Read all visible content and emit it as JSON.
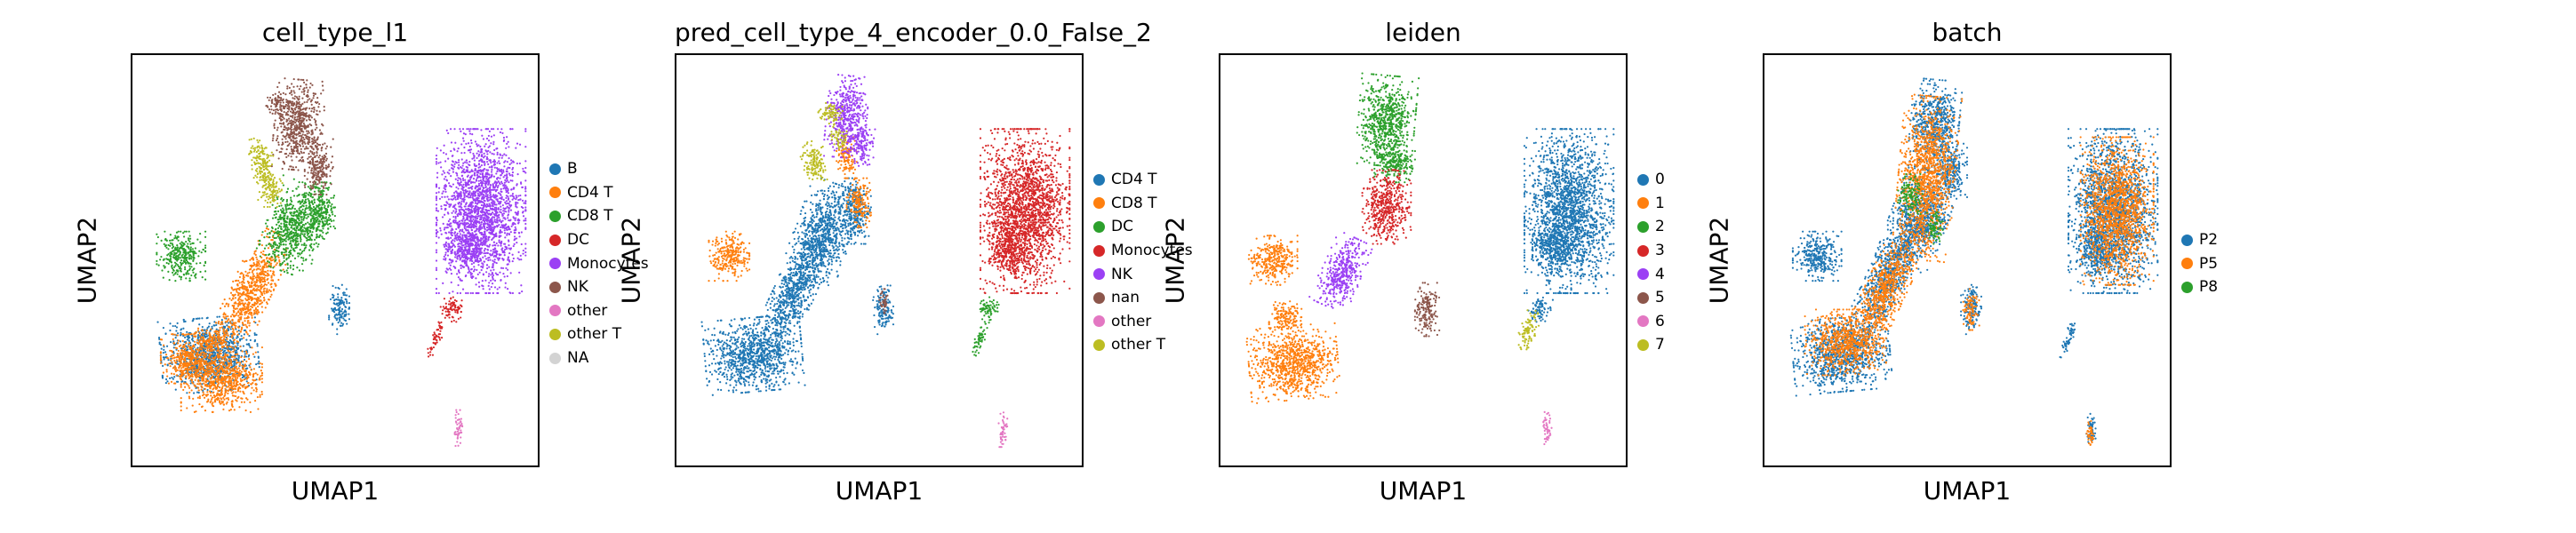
{
  "panels": [
    {
      "title": "cell_type_l1",
      "xlabel": "UMAP1",
      "ylabel": "UMAP2",
      "legend": [
        {
          "label": "B",
          "color": "#1f77b4"
        },
        {
          "label": "CD4 T",
          "color": "#ff7f0e"
        },
        {
          "label": "CD8 T",
          "color": "#2ca02c"
        },
        {
          "label": "DC",
          "color": "#d62728"
        },
        {
          "label": "Monocytes",
          "color": "#9b40f4"
        },
        {
          "label": "NK",
          "color": "#8c564b"
        },
        {
          "label": "other",
          "color": "#e377c2"
        },
        {
          "label": "other T",
          "color": "#bcbd22"
        },
        {
          "label": "NA",
          "color": "#d3d3d3"
        }
      ]
    },
    {
      "title": "pred_cell_type_4_encoder_0.0_False_2",
      "xlabel": "UMAP1",
      "ylabel": "UMAP2",
      "legend": [
        {
          "label": "CD4 T",
          "color": "#1f77b4"
        },
        {
          "label": "CD8 T",
          "color": "#ff7f0e"
        },
        {
          "label": "DC",
          "color": "#2ca02c"
        },
        {
          "label": "Monocytes",
          "color": "#d62728"
        },
        {
          "label": "NK",
          "color": "#9b40f4"
        },
        {
          "label": "nan",
          "color": "#8c564b"
        },
        {
          "label": "other",
          "color": "#e377c2"
        },
        {
          "label": "other T",
          "color": "#bcbd22"
        }
      ]
    },
    {
      "title": "leiden",
      "xlabel": "UMAP1",
      "ylabel": "UMAP2",
      "legend": [
        {
          "label": "0",
          "color": "#1f77b4"
        },
        {
          "label": "1",
          "color": "#ff7f0e"
        },
        {
          "label": "2",
          "color": "#2ca02c"
        },
        {
          "label": "3",
          "color": "#d62728"
        },
        {
          "label": "4",
          "color": "#9b40f4"
        },
        {
          "label": "5",
          "color": "#8c564b"
        },
        {
          "label": "6",
          "color": "#e377c2"
        },
        {
          "label": "7",
          "color": "#bcbd22"
        }
      ]
    },
    {
      "title": "batch",
      "xlabel": "UMAP1",
      "ylabel": "UMAP2",
      "legend": [
        {
          "label": "P2",
          "color": "#1f77b4"
        },
        {
          "label": "P5",
          "color": "#ff7f0e"
        },
        {
          "label": "P8",
          "color": "#2ca02c"
        }
      ]
    }
  ],
  "chart_data": [
    {
      "type": "scatter",
      "title": "cell_type_l1",
      "xlabel": "UMAP1",
      "ylabel": "UMAP2",
      "grid": false,
      "legend_placement": "right",
      "series": [
        {
          "name": "B",
          "clusters": [
            [
              0.19,
              0.27
            ]
          ]
        },
        {
          "name": "CD4 T",
          "clusters": [
            [
              0.18,
              0.23
            ],
            [
              0.28,
              0.43
            ]
          ]
        },
        {
          "name": "CD8 T",
          "clusters": [
            [
              0.12,
              0.51
            ],
            [
              0.44,
              0.58
            ],
            [
              0.36,
              0.62
            ]
          ]
        },
        {
          "name": "DC",
          "clusters": [
            [
              0.79,
              0.39
            ],
            [
              0.74,
              0.33
            ]
          ]
        },
        {
          "name": "Monocytes",
          "clusters": [
            [
              0.85,
              0.63
            ]
          ]
        },
        {
          "name": "NK",
          "clusters": [
            [
              0.42,
              0.82
            ],
            [
              0.45,
              0.72
            ]
          ]
        },
        {
          "name": "other",
          "clusters": [
            [
              0.8,
              0.09
            ]
          ]
        },
        {
          "name": "other T",
          "clusters": [
            [
              0.33,
              0.74
            ]
          ]
        },
        {
          "name": "B",
          "clusters": [
            [
              0.51,
              0.38
            ]
          ]
        }
      ]
    },
    {
      "type": "scatter",
      "title": "pred_cell_type_4_encoder_0.0_False_2",
      "xlabel": "UMAP1",
      "ylabel": "UMAP2",
      "grid": false,
      "legend_placement": "right",
      "series": [
        {
          "name": "CD4 T",
          "clusters": [
            [
              0.19,
              0.27
            ],
            [
              0.38,
              0.55
            ],
            [
              0.51,
              0.38
            ]
          ]
        },
        {
          "name": "CD8 T",
          "clusters": [
            [
              0.13,
              0.51
            ],
            [
              0.45,
              0.62
            ]
          ]
        },
        {
          "name": "DC",
          "clusters": [
            [
              0.77,
              0.38
            ]
          ]
        },
        {
          "name": "Monocytes",
          "clusters": [
            [
              0.85,
              0.63
            ]
          ]
        },
        {
          "name": "NK",
          "clusters": [
            [
              0.42,
              0.85
            ]
          ]
        },
        {
          "name": "other",
          "clusters": [
            [
              0.8,
              0.09
            ]
          ]
        },
        {
          "name": "other T",
          "clusters": [
            [
              0.33,
              0.74
            ]
          ]
        }
      ]
    },
    {
      "type": "scatter",
      "title": "leiden",
      "xlabel": "UMAP1",
      "ylabel": "UMAP2",
      "grid": false,
      "legend_placement": "right",
      "series": [
        {
          "name": "0",
          "clusters": [
            [
              0.85,
              0.63
            ]
          ]
        },
        {
          "name": "1",
          "clusters": [
            [
              0.18,
              0.26
            ],
            [
              0.13,
              0.5
            ]
          ]
        },
        {
          "name": "2",
          "clusters": [
            [
              0.42,
              0.82
            ]
          ]
        },
        {
          "name": "3",
          "clusters": [
            [
              0.41,
              0.63
            ]
          ]
        },
        {
          "name": "4",
          "clusters": [
            [
              0.3,
              0.48
            ]
          ]
        },
        {
          "name": "5",
          "clusters": [
            [
              0.51,
              0.38
            ]
          ]
        },
        {
          "name": "6",
          "clusters": [
            [
              0.8,
              0.09
            ]
          ]
        },
        {
          "name": "7",
          "clusters": [
            [
              0.76,
              0.34
            ]
          ]
        }
      ]
    },
    {
      "type": "scatter",
      "title": "batch",
      "xlabel": "UMAP1",
      "ylabel": "UMAP2",
      "grid": false,
      "legend_placement": "right",
      "series": [
        {
          "name": "P2",
          "clusters": [
            [
              0.19,
              0.27
            ],
            [
              0.13,
              0.51
            ],
            [
              0.36,
              0.6
            ],
            [
              0.42,
              0.82
            ],
            [
              0.85,
              0.63
            ],
            [
              0.51,
              0.38
            ],
            [
              0.8,
              0.09
            ]
          ]
        },
        {
          "name": "P5",
          "clusters": [
            [
              0.3,
              0.45
            ],
            [
              0.4,
              0.7
            ],
            [
              0.85,
              0.63
            ]
          ]
        },
        {
          "name": "P8",
          "clusters": [
            [
              0.36,
              0.65
            ]
          ]
        }
      ]
    }
  ]
}
